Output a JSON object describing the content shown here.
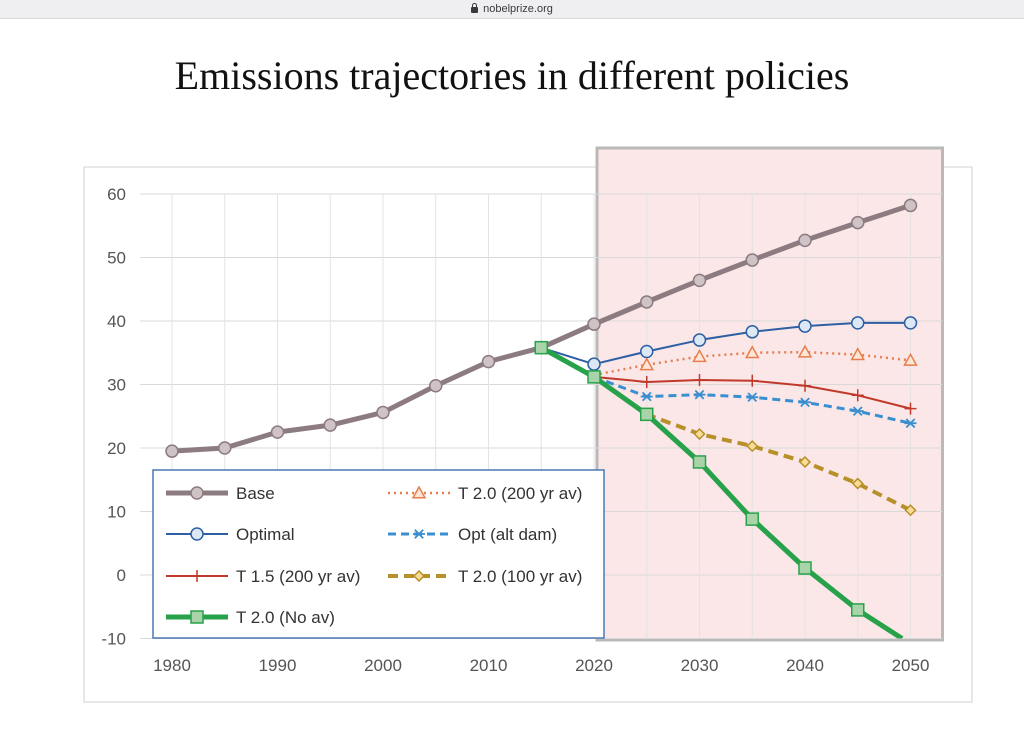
{
  "browser": {
    "url": "nobelprize.org"
  },
  "title": "Emissions trajectories in different policies",
  "chart_data": {
    "type": "line",
    "title": "Emissions trajectories in different policies",
    "xlabel": "",
    "ylabel": "",
    "xlim": [
      1977,
      2053
    ],
    "ylim": [
      -10,
      60
    ],
    "x_ticks": [
      1980,
      1990,
      2000,
      2010,
      2020,
      2030,
      2040,
      2050
    ],
    "y_ticks": [
      -10,
      0,
      10,
      20,
      30,
      40,
      50,
      60
    ],
    "grid": true,
    "legend_position": "bottom-left",
    "shaded_region": {
      "x_from": 2020,
      "x_to": 2050,
      "color": "#fbe7e7"
    },
    "series": [
      {
        "name": "Base",
        "color": "#8c7b80",
        "line": "solid",
        "marker": "circle",
        "x": [
          1980,
          1985,
          1990,
          1995,
          2000,
          2005,
          2010,
          2015,
          2020,
          2025,
          2030,
          2035,
          2040,
          2045,
          2050
        ],
        "values": [
          19.5,
          20.0,
          22.5,
          23.6,
          25.6,
          29.8,
          33.6,
          35.8,
          39.5,
          43.0,
          46.4,
          49.6,
          52.7,
          55.5,
          58.2
        ]
      },
      {
        "name": "Optimal",
        "color": "#2e5fa3",
        "line": "solid",
        "marker": "circle",
        "x": [
          2015,
          2020,
          2025,
          2030,
          2035,
          2040,
          2045,
          2050
        ],
        "values": [
          35.8,
          33.2,
          35.2,
          37.0,
          38.3,
          39.2,
          39.7,
          39.7
        ]
      },
      {
        "name": "T 1.5 (200 yr av)",
        "color": "#c0392b",
        "line": "solid",
        "marker": "plus",
        "x": [
          2015,
          2020,
          2025,
          2030,
          2035,
          2040,
          2045,
          2050
        ],
        "values": [
          35.8,
          31.2,
          30.4,
          30.7,
          30.6,
          29.8,
          28.3,
          26.2
        ]
      },
      {
        "name": "T 2.0 (No av)",
        "color": "#27a24b",
        "line": "solid",
        "marker": "square",
        "x": [
          2015,
          2020,
          2025,
          2030,
          2035,
          2040,
          2045,
          2049.2
        ],
        "values": [
          35.8,
          31.2,
          25.3,
          17.8,
          8.8,
          1.1,
          -5.5,
          -10
        ]
      },
      {
        "name": "T 2.0 (200 yr av)",
        "color": "#e67e4d",
        "line": "dotted",
        "marker": "triangle",
        "x": [
          2020,
          2025,
          2030,
          2035,
          2040,
          2045,
          2050
        ],
        "values": [
          31.5,
          33.1,
          34.4,
          35.0,
          35.1,
          34.7,
          33.8
        ]
      },
      {
        "name": "Opt (alt dam)",
        "color": "#3a8fd0",
        "line": "dashed",
        "marker": "asterisk",
        "x": [
          2020,
          2025,
          2030,
          2035,
          2040,
          2045,
          2050
        ],
        "values": [
          31.2,
          28.1,
          28.4,
          28.0,
          27.2,
          25.8,
          23.9
        ]
      },
      {
        "name": "T 2.0 (100 yr av)",
        "color": "#b8902a",
        "line": "dashed",
        "marker": "diamond",
        "x": [
          2020,
          2025,
          2030,
          2035,
          2040,
          2045,
          2050
        ],
        "values": [
          31.2,
          25.3,
          22.2,
          20.3,
          17.8,
          14.4,
          10.2
        ]
      }
    ]
  }
}
